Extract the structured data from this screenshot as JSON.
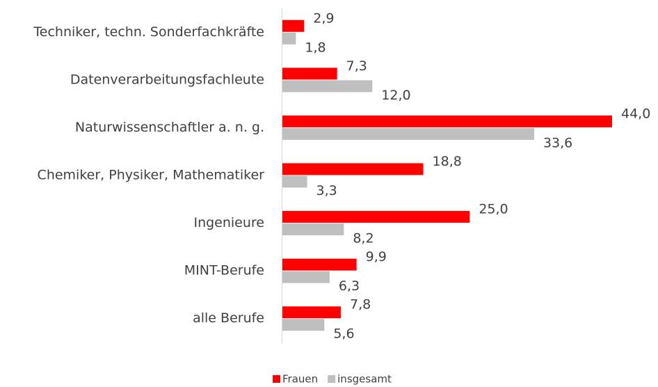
{
  "chart_data": {
    "type": "hbar",
    "categories": [
      "Techniker, techn. Sonderfachkräfte",
      "Datenverarbeitungsfachleute",
      "Naturwissenschaftler a. n. g.",
      "Chemiker, Physiker, Mathematiker",
      "Ingenieure",
      "MINT-Berufe",
      "alle Berufe"
    ],
    "series": [
      {
        "name": "Frauen",
        "color": "#ff0000",
        "values": [
          2.9,
          7.3,
          44.0,
          18.8,
          25.0,
          9.9,
          7.8
        ],
        "value_labels": [
          "2,9",
          "7,3",
          "44,0",
          "18,8",
          "25,0",
          "9,9",
          "7,8"
        ]
      },
      {
        "name": "insgesamt",
        "color": "#bfbfbf",
        "values": [
          1.8,
          12.0,
          33.6,
          3.3,
          8.2,
          6.3,
          5.6
        ],
        "value_labels": [
          "1,8",
          "12,0",
          "33,6",
          "3,3",
          "8,2",
          "6,3",
          "5,6"
        ]
      }
    ],
    "legend": "bottom"
  }
}
